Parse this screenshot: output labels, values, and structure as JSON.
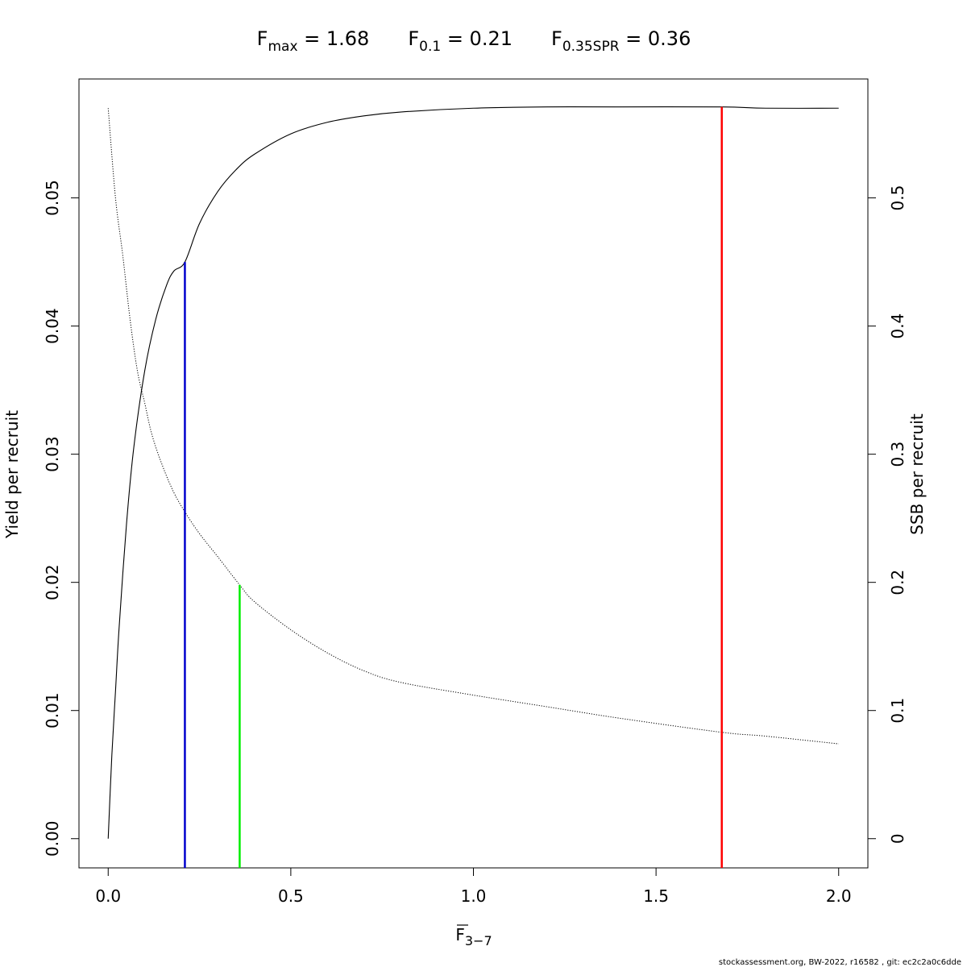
{
  "chart_data": {
    "type": "line",
    "title_parts": [
      {
        "base": "F",
        "sub": "max",
        "rest": " = 1.68"
      },
      {
        "base": "F",
        "sub": "0.1",
        "rest": " = 0.21"
      },
      {
        "base": "F",
        "sub": "0.35SPR",
        "rest": " = 0.36"
      }
    ],
    "xlabel": {
      "base": "F",
      "sub": "3−7"
    },
    "ylabel": "Yield per recruit",
    "y2label": "SSB per recruit",
    "xlim": [
      -0.08,
      2.08
    ],
    "ylim": [
      -0.00228,
      0.05928
    ],
    "y2lim": [
      -0.0228,
      0.5928
    ],
    "x_ticks": [
      {
        "value": 0.0,
        "label": "0.0"
      },
      {
        "value": 0.5,
        "label": "0.5"
      },
      {
        "value": 1.0,
        "label": "1.0"
      },
      {
        "value": 1.5,
        "label": "1.5"
      },
      {
        "value": 2.0,
        "label": "2.0"
      }
    ],
    "y_ticks": [
      {
        "value": 0.0,
        "label": "0.00"
      },
      {
        "value": 0.01,
        "label": "0.01"
      },
      {
        "value": 0.02,
        "label": "0.02"
      },
      {
        "value": 0.03,
        "label": "0.03"
      },
      {
        "value": 0.04,
        "label": "0.04"
      },
      {
        "value": 0.05,
        "label": "0.05"
      }
    ],
    "y2_ticks": [
      {
        "value": 0.0,
        "label": "0"
      },
      {
        "value": 0.1,
        "label": "0.1"
      },
      {
        "value": 0.2,
        "label": "0.2"
      },
      {
        "value": 0.3,
        "label": "0.3"
      },
      {
        "value": 0.4,
        "label": "0.4"
      },
      {
        "value": 0.5,
        "label": "0.5"
      }
    ],
    "series": [
      {
        "axis": "left",
        "style": "solid",
        "color": "#000000",
        "x": [
          0.0,
          0.01,
          0.02,
          0.03,
          0.05,
          0.07,
          0.1,
          0.13,
          0.16,
          0.18,
          0.21,
          0.25,
          0.3,
          0.35,
          0.4,
          0.5,
          0.6,
          0.7,
          0.8,
          1.0,
          1.2,
          1.4,
          1.68,
          1.8,
          2.0
        ],
        "y": [
          0.0,
          0.0065,
          0.0115,
          0.0165,
          0.0245,
          0.0305,
          0.0365,
          0.0405,
          0.0432,
          0.0443,
          0.045,
          0.048,
          0.0505,
          0.0522,
          0.0534,
          0.055,
          0.0559,
          0.0564,
          0.0567,
          0.057,
          0.0571,
          0.0571,
          0.0571,
          0.057,
          0.057
        ]
      },
      {
        "axis": "right",
        "style": "dotted",
        "color": "#000000",
        "x": [
          0.0,
          0.02,
          0.04,
          0.06,
          0.08,
          0.1,
          0.12,
          0.15,
          0.18,
          0.21,
          0.25,
          0.3,
          0.36,
          0.4,
          0.5,
          0.6,
          0.7,
          0.8,
          1.0,
          1.2,
          1.4,
          1.68,
          1.8,
          2.0
        ],
        "y": [
          0.57,
          0.5,
          0.455,
          0.405,
          0.365,
          0.34,
          0.315,
          0.29,
          0.27,
          0.255,
          0.238,
          0.22,
          0.198,
          0.185,
          0.163,
          0.145,
          0.131,
          0.122,
          0.112,
          0.103,
          0.094,
          0.083,
          0.08,
          0.074
        ]
      }
    ],
    "reference_lines": [
      {
        "name": "Fmax",
        "x": 1.68,
        "y_top": 0.0571,
        "color": "#ff0000"
      },
      {
        "name": "F0.1",
        "x": 0.21,
        "y_top": 0.045,
        "color": "#0000cd"
      },
      {
        "name": "F0.35SPR",
        "x": 0.36,
        "y_top": 0.0198,
        "color": "#00ee00"
      }
    ]
  },
  "footer": "stockassessment.org, BW-2022, r16582 , git: ec2c2a0c6dde"
}
